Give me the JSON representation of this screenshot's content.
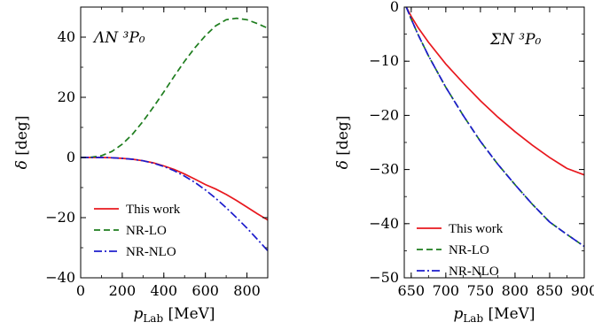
{
  "chart_data": [
    {
      "type": "line",
      "annotation": "ΛN ³P₀",
      "xlabel": "p_Lab [MeV]",
      "ylabel": "δ [deg]",
      "xlim": [
        0,
        900
      ],
      "ylim": [
        -40,
        50
      ],
      "xticks": [
        0,
        200,
        400,
        600,
        800
      ],
      "yticks": [
        -40,
        -20,
        0,
        20,
        40
      ],
      "grid": false,
      "legend_position": "lower-left",
      "series": [
        {
          "name": "This work",
          "color": "#e8181e",
          "style": "solid",
          "x": [
            0,
            50,
            100,
            150,
            200,
            250,
            300,
            350,
            400,
            450,
            500,
            550,
            600,
            650,
            700,
            750,
            800,
            850,
            900
          ],
          "y": [
            0,
            0,
            0,
            -0.1,
            -0.3,
            -0.6,
            -1.1,
            -1.8,
            -2.8,
            -4.0,
            -5.5,
            -7.2,
            -9.0,
            -10.5,
            -12.3,
            -14.3,
            -16.5,
            -18.7,
            -20.8
          ]
        },
        {
          "name": "NR-LO",
          "color": "#1e7d1e",
          "style": "dashed",
          "x": [
            0,
            50,
            100,
            150,
            200,
            250,
            300,
            350,
            400,
            450,
            500,
            550,
            600,
            650,
            700,
            750,
            800,
            850,
            900
          ],
          "y": [
            0,
            0.1,
            0.6,
            2.0,
            4.4,
            7.8,
            12.0,
            16.8,
            21.8,
            27.0,
            32.0,
            36.5,
            40.5,
            43.8,
            45.8,
            46.3,
            45.8,
            44.5,
            43.0
          ]
        },
        {
          "name": "NR-NLO",
          "color": "#1c1ccc",
          "style": "dashdot",
          "x": [
            0,
            50,
            100,
            150,
            200,
            250,
            300,
            350,
            400,
            450,
            500,
            550,
            600,
            650,
            700,
            750,
            800,
            850,
            900
          ],
          "y": [
            0,
            0,
            0,
            -0.1,
            -0.3,
            -0.6,
            -1.1,
            -1.9,
            -3.0,
            -4.4,
            -6.2,
            -8.3,
            -10.8,
            -13.6,
            -16.7,
            -20.0,
            -23.5,
            -27.2,
            -31.0
          ]
        }
      ]
    },
    {
      "type": "line",
      "annotation": "ΣN ³P₀",
      "xlabel": "p_Lab [MeV]",
      "ylabel": "δ [deg]",
      "xlim": [
        640,
        900
      ],
      "ylim": [
        -50,
        0
      ],
      "xticks": [
        650,
        700,
        750,
        800,
        850,
        900
      ],
      "yticks": [
        -50,
        -40,
        -30,
        -20,
        -10,
        0
      ],
      "grid": false,
      "legend_position": "lower-left",
      "series": [
        {
          "name": "This work",
          "color": "#e8181e",
          "style": "solid",
          "x": [
            643,
            650,
            660,
            675,
            700,
            725,
            750,
            775,
            800,
            825,
            850,
            875,
            900
          ],
          "y": [
            0,
            -1.7,
            -3.8,
            -6.5,
            -10.5,
            -14.0,
            -17.3,
            -20.3,
            -23.0,
            -25.5,
            -27.8,
            -29.8,
            -31.0
          ]
        },
        {
          "name": "NR-LO",
          "color": "#1e7d1e",
          "style": "dashed",
          "x": [
            643,
            650,
            660,
            675,
            700,
            725,
            750,
            775,
            800,
            825,
            850,
            875,
            900
          ],
          "y": [
            0,
            -2.2,
            -5.1,
            -9.0,
            -14.8,
            -20.0,
            -24.8,
            -29.0,
            -32.8,
            -36.4,
            -39.7,
            -42.0,
            -44.2
          ]
        },
        {
          "name": "NR-NLO",
          "color": "#1c1ccc",
          "style": "dashdot",
          "x": [
            643,
            650,
            660,
            675,
            700,
            725,
            750,
            775,
            800,
            825,
            850,
            875,
            900
          ],
          "y": [
            0,
            -2.2,
            -5.1,
            -9.0,
            -14.8,
            -20.0,
            -24.8,
            -29.0,
            -32.8,
            -36.4,
            -39.7,
            -42.0,
            -44.2
          ]
        }
      ]
    }
  ]
}
